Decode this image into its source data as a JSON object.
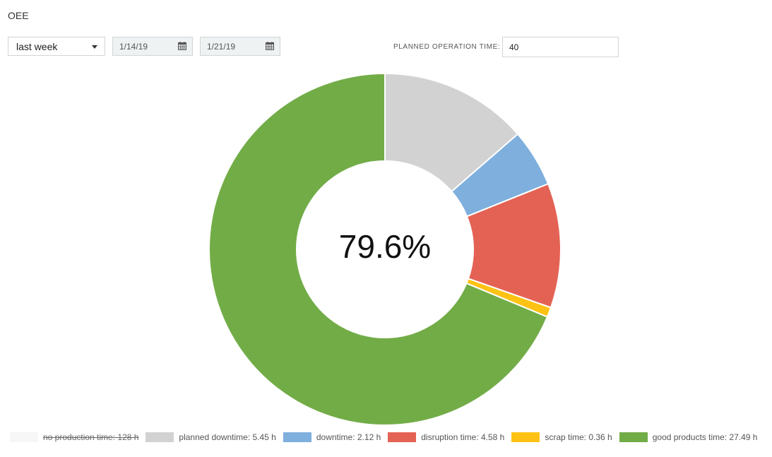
{
  "header": {
    "title": "OEE"
  },
  "controls": {
    "period_value": "last week",
    "start_date": "1/14/19",
    "end_date": "1/21/19",
    "planned_operation_label": "PLANNED OPERATION TIME:",
    "planned_operation_value": "40"
  },
  "chart_data": {
    "type": "pie",
    "variant": "donut",
    "center_label": "79.6%",
    "unit": "h",
    "slices": [
      {
        "name": "no production time",
        "value": 128,
        "legend_text": "no production time: 128 h",
        "color": "#f7f7f7",
        "hidden": true
      },
      {
        "name": "planned downtime",
        "value": 5.45,
        "legend_text": "planned downtime: 5.45 h",
        "color": "#d3d2d3",
        "hidden": false
      },
      {
        "name": "downtime",
        "value": 2.12,
        "legend_text": "downtime: 2.12 h",
        "color": "#7eafdd",
        "hidden": false
      },
      {
        "name": "disruption time",
        "value": 4.58,
        "legend_text": "disruption time: 4.58 h",
        "color": "#e46254",
        "hidden": false
      },
      {
        "name": "scrap time",
        "value": 0.36,
        "legend_text": "scrap time: 0.36 h",
        "color": "#fdc214",
        "hidden": false
      },
      {
        "name": "good products time",
        "value": 27.49,
        "legend_text": "good products time: 27.49 h",
        "color": "#72ac47",
        "hidden": false
      }
    ],
    "legend_position": "bottom"
  }
}
